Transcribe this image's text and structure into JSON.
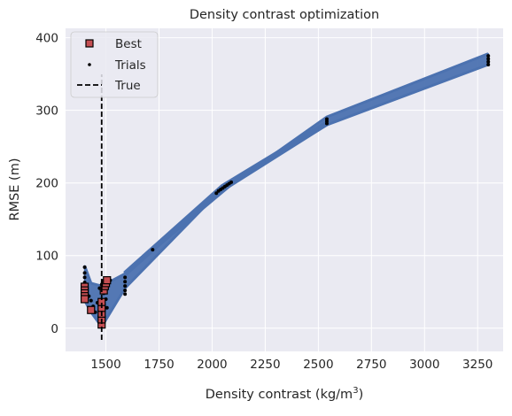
{
  "chart_data": {
    "type": "scatter",
    "title": "Density contrast optimization",
    "xlabel_main": "Density contrast (kg/m",
    "xlabel_sup": "3",
    "xlabel_tail": ")",
    "ylabel": "RMSE (m)",
    "xlim": [
      1310,
      3370
    ],
    "ylim": [
      -32,
      413
    ],
    "xticks": [
      "1500",
      "1750",
      "2000",
      "2250",
      "2500",
      "2750",
      "3000",
      "3250"
    ],
    "xtick_values": [
      1500,
      1750,
      2000,
      2250,
      2500,
      2750,
      3000,
      3250
    ],
    "yticks": [
      "0",
      "100",
      "200",
      "300",
      "400"
    ],
    "ytick_values": [
      0,
      100,
      200,
      300,
      400
    ],
    "grid": true,
    "legend_placement": "top-left",
    "legend": {
      "best": "Best",
      "trials": "Trials",
      "true": "True"
    },
    "true_value": 1480,
    "colors": {
      "background": "#eaeaf2",
      "grid": "#ffffff",
      "path": "#4c72b0",
      "best_fill": "#c44e52",
      "marker_edge": "#000000"
    },
    "trials": [
      [
        1400,
        84
      ],
      [
        1400,
        76
      ],
      [
        1400,
        70
      ],
      [
        1400,
        63
      ],
      [
        1400,
        55
      ],
      [
        1400,
        48
      ],
      [
        1400,
        42
      ],
      [
        1420,
        44
      ],
      [
        1430,
        38
      ],
      [
        1440,
        30
      ],
      [
        1450,
        22
      ],
      [
        1460,
        35
      ],
      [
        1470,
        55
      ],
      [
        1480,
        60
      ],
      [
        1490,
        48
      ],
      [
        1500,
        40
      ],
      [
        1505,
        28
      ],
      [
        1510,
        62
      ],
      [
        1520,
        66
      ],
      [
        1590,
        70
      ],
      [
        1590,
        64
      ],
      [
        1590,
        58
      ],
      [
        1590,
        52
      ],
      [
        1590,
        47
      ],
      [
        1720,
        108
      ],
      [
        2020,
        186
      ],
      [
        2030,
        189
      ],
      [
        2040,
        191
      ],
      [
        2050,
        193
      ],
      [
        2060,
        195
      ],
      [
        2070,
        197
      ],
      [
        2080,
        199
      ],
      [
        2090,
        201
      ],
      [
        2540,
        282
      ],
      [
        2540,
        285
      ],
      [
        2540,
        288
      ],
      [
        3300,
        363
      ],
      [
        3300,
        367
      ],
      [
        3300,
        371
      ],
      [
        3300,
        375
      ]
    ],
    "best": [
      [
        1400,
        57
      ],
      [
        1400,
        52
      ],
      [
        1400,
        48
      ],
      [
        1400,
        44
      ],
      [
        1400,
        40
      ],
      [
        1430,
        25
      ],
      [
        1480,
        5
      ],
      [
        1480,
        12
      ],
      [
        1480,
        20
      ],
      [
        1480,
        28
      ],
      [
        1480,
        36
      ],
      [
        1490,
        52
      ],
      [
        1495,
        58
      ],
      [
        1500,
        62
      ],
      [
        1505,
        66
      ]
    ],
    "band": {
      "lower": [
        [
          1400,
          38
        ],
        [
          1430,
          22
        ],
        [
          1480,
          2
        ],
        [
          1590,
          55
        ],
        [
          2020,
          184
        ],
        [
          2540,
          280
        ],
        [
          3300,
          363
        ]
      ],
      "upper": [
        [
          1400,
          86
        ],
        [
          1430,
          62
        ],
        [
          1480,
          58
        ],
        [
          1590,
          75
        ],
        [
          2100,
          200
        ],
        [
          2540,
          291
        ],
        [
          3300,
          378
        ]
      ],
      "cross": [
        [
          1590,
          75
        ],
        [
          2050,
          195
        ],
        [
          2540,
          282
        ]
      ]
    }
  }
}
